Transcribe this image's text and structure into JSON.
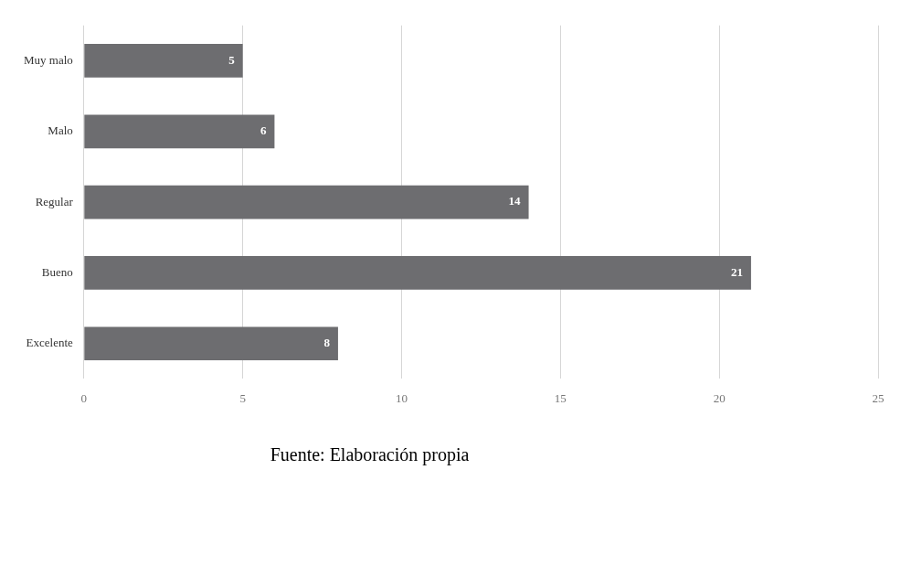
{
  "chart_data": {
    "type": "bar",
    "orientation": "horizontal",
    "categories": [
      "Muy malo",
      "Malo",
      "Regular",
      "Bueno",
      "Excelente"
    ],
    "values": [
      5,
      6,
      14,
      21,
      8
    ],
    "color": "#6d6d70",
    "xlim": [
      0,
      25
    ],
    "xticks": [
      0,
      5,
      10,
      15,
      20,
      25
    ],
    "grid": "x",
    "data_labels": true,
    "legend": false,
    "annotations": [
      "Fuente: Elaboración propia"
    ]
  }
}
